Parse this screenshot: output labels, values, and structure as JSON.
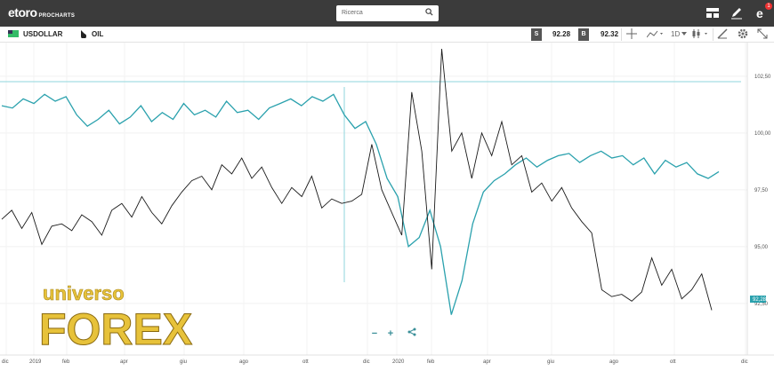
{
  "header": {
    "logo_text": "etoro",
    "logo_sub": "PROCHARTS",
    "search_placeholder": "Ricerca",
    "badge": "1"
  },
  "toolbar": {
    "instrument1": "USDOLLAR",
    "instrument2": "OIL",
    "sell_label": "S",
    "sell_price": "92.28",
    "buy_label": "B",
    "buy_price": "92.32",
    "timeframe": "1D"
  },
  "watermark": {
    "top": "universo",
    "bottom": "FOREX"
  },
  "chart_data": {
    "type": "line",
    "y_ticks": [
      "102,50",
      "100,00",
      "97,50",
      "95,00",
      "92,50"
    ],
    "x_ticks": [
      "dic",
      "2019",
      "feb",
      "apr",
      "giu",
      "ago",
      "ott",
      "dic",
      "2020",
      "feb",
      "apr",
      "giu",
      "ago",
      "ott",
      "dic"
    ],
    "current_price_label": "92,28",
    "series": [
      {
        "color": "#2aa1ad",
        "values": [
          101.2,
          101.1,
          101.5,
          101.3,
          101.7,
          101.4,
          101.6,
          100.8,
          100.3,
          100.6,
          101.0,
          100.4,
          100.7,
          101.2,
          100.5,
          100.9,
          100.6,
          101.3,
          100.8,
          101.0,
          100.7,
          101.4,
          100.9,
          101.0,
          100.6,
          101.1,
          101.3,
          101.5,
          101.2,
          101.6,
          101.4,
          101.7,
          100.8,
          100.2,
          100.5,
          99.5,
          98.0,
          97.2,
          95.0,
          95.4,
          96.6,
          95.0,
          92.0,
          93.5,
          96.0,
          97.4,
          97.9,
          98.2,
          98.6,
          98.9,
          98.5,
          98.8,
          99.0,
          99.1,
          98.7,
          99.0,
          99.2,
          98.9,
          99.0,
          98.6,
          98.9,
          98.2,
          98.8,
          98.5,
          98.7,
          98.2,
          98.0,
          98.3
        ]
      },
      {
        "color": "#1a1a1a",
        "values": [
          96.2,
          96.6,
          95.8,
          96.5,
          95.1,
          95.9,
          96.0,
          95.7,
          96.4,
          96.1,
          95.5,
          96.6,
          96.9,
          96.3,
          97.2,
          96.5,
          96.0,
          96.8,
          97.4,
          97.9,
          98.1,
          97.5,
          98.6,
          98.2,
          98.9,
          98.0,
          98.5,
          97.6,
          96.9,
          97.6,
          97.2,
          98.1,
          96.7,
          97.1,
          96.9,
          97.0,
          97.3,
          99.5,
          97.5,
          96.5,
          95.5,
          101.8,
          99.2,
          94.0,
          103.7,
          99.2,
          100.0,
          98.0,
          100.0,
          99.0,
          100.5,
          98.6,
          99.0,
          97.4,
          97.8,
          97.0,
          97.6,
          96.7,
          96.1,
          95.6,
          93.1,
          92.8,
          92.9,
          92.6,
          93.0,
          94.5,
          93.3,
          94.0,
          92.7,
          93.1,
          93.8,
          92.2
        ]
      }
    ]
  }
}
